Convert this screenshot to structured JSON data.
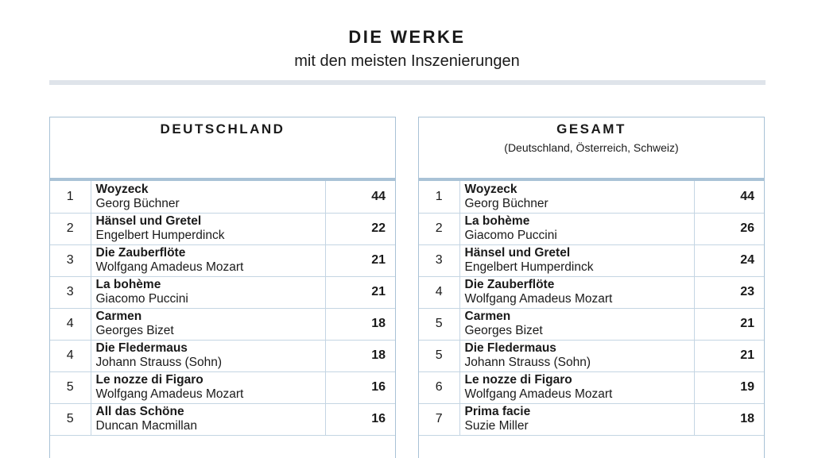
{
  "header": {
    "title": "DIE WERKE",
    "subtitle": "mit den meisten Inszenierungen"
  },
  "colors": {
    "panel_border": "#a9c2d6",
    "header_rule": "#dfe4ea",
    "row_divider": "#c4d5e3",
    "text": "#1a1a1a"
  },
  "panels": [
    {
      "title": "DEUTSCHLAND",
      "subtitle": "",
      "rows": [
        {
          "rank": "1",
          "title": "Woyzeck",
          "author": "Georg Büchner",
          "count": "44"
        },
        {
          "rank": "2",
          "title": "Hänsel und Gretel",
          "author": "Engelbert Humperdinck",
          "count": "22"
        },
        {
          "rank": "3",
          "title": "Die Zauberflöte",
          "author": "Wolfgang Amadeus Mozart",
          "count": "21"
        },
        {
          "rank": "3",
          "title": "La bohème",
          "author": "Giacomo Puccini",
          "count": "21"
        },
        {
          "rank": "4",
          "title": "Carmen",
          "author": "Georges Bizet",
          "count": "18"
        },
        {
          "rank": "4",
          "title": "Die Fledermaus",
          "author": "Johann Strauss (Sohn)",
          "count": "18"
        },
        {
          "rank": "5",
          "title": "Le nozze di Figaro",
          "author": "Wolfgang Amadeus Mozart",
          "count": "16"
        },
        {
          "rank": "5",
          "title": "All das Schöne",
          "author": "Duncan Macmillan",
          "count": "16"
        }
      ]
    },
    {
      "title": "GESAMT",
      "subtitle": "(Deutschland, Österreich, Schweiz)",
      "rows": [
        {
          "rank": "1",
          "title": "Woyzeck",
          "author": "Georg Büchner",
          "count": "44"
        },
        {
          "rank": "2",
          "title": "La bohème",
          "author": "Giacomo Puccini",
          "count": "26"
        },
        {
          "rank": "3",
          "title": "Hänsel und Gretel",
          "author": "Engelbert Humperdinck",
          "count": "24"
        },
        {
          "rank": "4",
          "title": "Die Zauberflöte",
          "author": "Wolfgang Amadeus Mozart",
          "count": "23"
        },
        {
          "rank": "5",
          "title": "Carmen",
          "author": "Georges Bizet",
          "count": "21"
        },
        {
          "rank": "5",
          "title": "Die Fledermaus",
          "author": "Johann Strauss (Sohn)",
          "count": "21"
        },
        {
          "rank": "6",
          "title": "Le nozze di Figaro",
          "author": "Wolfgang Amadeus Mozart",
          "count": "19"
        },
        {
          "rank": "7",
          "title": "Prima facie",
          "author": "Suzie Miller",
          "count": "18"
        }
      ]
    }
  ]
}
